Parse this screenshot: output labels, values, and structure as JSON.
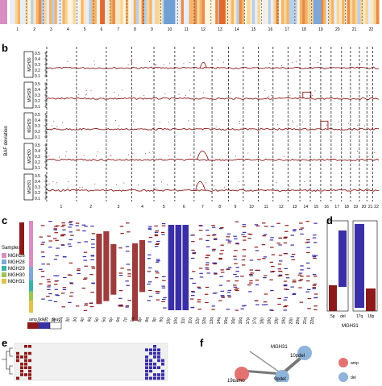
{
  "panels": {
    "a": {
      "chromosomes": [
        "1",
        "2",
        "3",
        "4",
        "5",
        "6",
        "7",
        "8",
        "9",
        "10",
        "11",
        "12",
        "13",
        "14",
        "15",
        "16",
        "17",
        "18",
        "19",
        "20",
        "21",
        "22"
      ]
    },
    "b": {
      "label": "b",
      "ylabel": "BAF deviation",
      "samples": [
        "MGH26",
        "MGH28",
        "MGH29",
        "MGH30",
        "MGH31"
      ],
      "yticks": [
        "0.5",
        "0.4",
        "0.3",
        "0.2",
        "0.1"
      ],
      "chromosomes": [
        "1",
        "2",
        "3",
        "4",
        "5",
        "6",
        "7",
        "8",
        "9",
        "10",
        "11",
        "12",
        "13",
        "14",
        "15",
        "16",
        "17",
        "18",
        "19",
        "20",
        "21",
        "22"
      ]
    },
    "c": {
      "label": "c",
      "legend_title": "Samples",
      "samples": [
        "MGH26",
        "MGH28",
        "MGH29",
        "MGH30",
        "MGH31"
      ],
      "sample_colors": [
        "#d98ec3",
        "#7fa8d6",
        "#3bb1a6",
        "#9bc553",
        "#e1c34a"
      ],
      "state_legend": [
        "amp",
        "del",
        "neut"
      ],
      "state_colors": [
        "#8c1a1a",
        "#3a2fa6",
        "#ffffff"
      ],
      "xticks": [
        "1p",
        "1q",
        "2p",
        "2q",
        "3p",
        "3q",
        "4p",
        "4q",
        "5p",
        "5q",
        "6p",
        "6q",
        "7p",
        "7q",
        "8p",
        "8q",
        "9p",
        "9q",
        "10p",
        "10q",
        "11p",
        "11q",
        "12p",
        "12q",
        "13q",
        "14q",
        "15q",
        "16p",
        "16q",
        "17p",
        "17q",
        "18p",
        "18q",
        "19p",
        "19q",
        "20p",
        "20q",
        "21q",
        "22q"
      ]
    },
    "d": {
      "label": "d",
      "title": "MGH31",
      "xticks": [
        "5p",
        "del",
        "17q",
        "19p"
      ]
    },
    "e": {
      "label": "e"
    },
    "f": {
      "label": "f",
      "title": "MGH31",
      "nodes": [
        "19pamp",
        "9pdel",
        "10pdel"
      ],
      "legend": [
        "amp",
        "del"
      ],
      "node_colors": {
        "amp": "#e27372",
        "del": "#8fb3d9"
      }
    }
  }
}
